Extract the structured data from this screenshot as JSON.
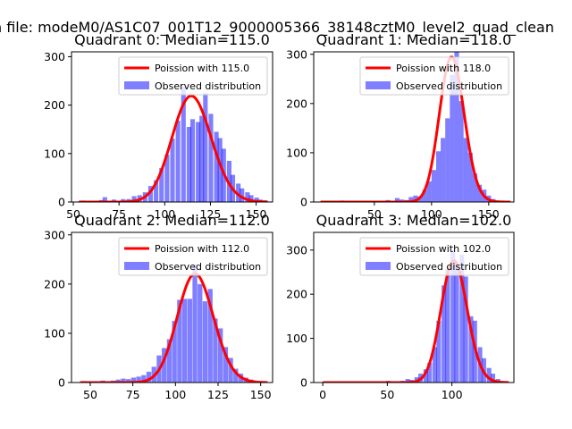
{
  "figure": {
    "suptitle": "n file: modeM0/AS1C07_001T12_9000005366_38148cztM0_level2_quad_clean"
  },
  "chart_data": [
    {
      "type": "bar",
      "title": "Quadrant 0: Median=115.0",
      "xlim": [
        49,
        159
      ],
      "ylim": [
        0,
        310
      ],
      "xticks": [
        50,
        75,
        100,
        125,
        150
      ],
      "yticks": [
        0,
        100,
        200,
        300
      ],
      "bin_width": 2.5,
      "histogram": {
        "name": "Observed distribution",
        "color": "#0000ff",
        "alpha": 0.5,
        "bins": [
          [
            54,
            3
          ],
          [
            64,
            4
          ],
          [
            66,
            10
          ],
          [
            71,
            5
          ],
          [
            76,
            6
          ],
          [
            79,
            6
          ],
          [
            82,
            12
          ],
          [
            85,
            14
          ],
          [
            88,
            20
          ],
          [
            91,
            33
          ],
          [
            94,
            45
          ],
          [
            97,
            70
          ],
          [
            100,
            98
          ],
          [
            103,
            131
          ],
          [
            106,
            168
          ],
          [
            109,
            238
          ],
          [
            112,
            155
          ],
          [
            114,
            171
          ],
          [
            117,
            165
          ],
          [
            119,
            178
          ],
          [
            121,
            225
          ],
          [
            124,
            182
          ],
          [
            127,
            145
          ],
          [
            129,
            132
          ],
          [
            131,
            110
          ],
          [
            134,
            85
          ],
          [
            136,
            56
          ],
          [
            139,
            38
          ],
          [
            141,
            28
          ],
          [
            144,
            20
          ],
          [
            146,
            14
          ],
          [
            149,
            9
          ],
          [
            151,
            5
          ],
          [
            154,
            3
          ]
        ]
      },
      "poisson": {
        "name": "Poission with 115.0",
        "mean": 115.0,
        "color": "#ff0000"
      },
      "legend": {
        "position": "top-right",
        "entries": [
          "Poission with 115.0",
          "Observed distribution"
        ]
      }
    },
    {
      "type": "bar",
      "title": "Quadrant 1: Median=118.0",
      "xlim": [
        -3,
        172
      ],
      "ylim": [
        0,
        305
      ],
      "xticks": [
        50,
        100,
        150
      ],
      "yticks": [
        0,
        100,
        200,
        300
      ],
      "bin_width": 4,
      "histogram": {
        "name": "Observed distribution",
        "color": "#0000ff",
        "alpha": 0.5,
        "bins": [
          [
            4,
            2
          ],
          [
            20,
            3
          ],
          [
            60,
            4
          ],
          [
            68,
            8
          ],
          [
            72,
            5
          ],
          [
            76,
            4
          ],
          [
            80,
            10
          ],
          [
            84,
            13
          ],
          [
            88,
            11
          ],
          [
            92,
            25
          ],
          [
            96,
            42
          ],
          [
            100,
            65
          ],
          [
            104,
            103
          ],
          [
            108,
            130
          ],
          [
            112,
            170
          ],
          [
            116,
            258
          ],
          [
            120,
            320
          ],
          [
            124,
            205
          ],
          [
            128,
            130
          ],
          [
            132,
            100
          ],
          [
            136,
            58
          ],
          [
            140,
            35
          ],
          [
            144,
            25
          ],
          [
            148,
            13
          ],
          [
            152,
            6
          ],
          [
            156,
            3
          ],
          [
            160,
            2
          ]
        ]
      },
      "poisson": {
        "name": "Poission with 118.0",
        "mean": 118.0,
        "color": "#ff0000"
      },
      "legend": {
        "position": "top-right",
        "entries": [
          "Poission with 118.0",
          "Observed distribution"
        ]
      }
    },
    {
      "type": "bar",
      "title": "Quadrant 2: Median=112.0",
      "xlim": [
        39,
        157
      ],
      "ylim": [
        0,
        305
      ],
      "xticks": [
        50,
        75,
        100,
        125,
        150
      ],
      "yticks": [
        0,
        100,
        200,
        300
      ],
      "bin_width": 2.8,
      "histogram": {
        "name": "Observed distribution",
        "color": "#0000ff",
        "alpha": 0.5,
        "bins": [
          [
            45,
            3
          ],
          [
            56,
            4
          ],
          [
            62,
            4
          ],
          [
            65,
            6
          ],
          [
            68,
            8
          ],
          [
            71,
            7
          ],
          [
            74,
            10
          ],
          [
            77,
            12
          ],
          [
            80,
            15
          ],
          [
            83,
            22
          ],
          [
            86,
            32
          ],
          [
            89,
            55
          ],
          [
            92,
            70
          ],
          [
            95,
            88
          ],
          [
            98,
            125
          ],
          [
            101,
            168
          ],
          [
            104,
            170
          ],
          [
            107,
            170
          ],
          [
            110,
            240
          ],
          [
            113,
            200
          ],
          [
            116,
            165
          ],
          [
            119,
            190
          ],
          [
            122,
            130
          ],
          [
            125,
            110
          ],
          [
            128,
            72
          ],
          [
            131,
            50
          ],
          [
            134,
            28
          ],
          [
            137,
            18
          ],
          [
            140,
            10
          ],
          [
            143,
            6
          ],
          [
            146,
            3
          ]
        ]
      },
      "poisson": {
        "name": "Poission with 112.0",
        "mean": 112.0,
        "color": "#ff0000"
      },
      "legend": {
        "position": "top-right",
        "entries": [
          "Poission with 112.0",
          "Observed distribution"
        ]
      }
    },
    {
      "type": "bar",
      "title": "Quadrant 3: Median=102.0",
      "xlim": [
        -7,
        148
      ],
      "ylim": [
        0,
        340
      ],
      "xticks": [
        0,
        50,
        100
      ],
      "yticks": [
        0,
        100,
        200,
        300
      ],
      "bin_width": 3.5,
      "histogram": {
        "name": "Observed distribution",
        "color": "#0000ff",
        "alpha": 0.5,
        "bins": [
          [
            1,
            2
          ],
          [
            49,
            4
          ],
          [
            57,
            3
          ],
          [
            60,
            4
          ],
          [
            64,
            8
          ],
          [
            67,
            6
          ],
          [
            71,
            12
          ],
          [
            74,
            20
          ],
          [
            78,
            30
          ],
          [
            81,
            45
          ],
          [
            85,
            80
          ],
          [
            88,
            140
          ],
          [
            92,
            220
          ],
          [
            95,
            258
          ],
          [
            99,
            300
          ],
          [
            102,
            270
          ],
          [
            106,
            290
          ],
          [
            109,
            240
          ],
          [
            113,
            150
          ],
          [
            116,
            140
          ],
          [
            120,
            80
          ],
          [
            123,
            55
          ],
          [
            127,
            33
          ],
          [
            130,
            20
          ],
          [
            134,
            8
          ]
        ]
      },
      "poisson": {
        "name": "Poission with 102.0",
        "mean": 102.0,
        "color": "#ff0000"
      },
      "legend": {
        "position": "top-right",
        "entries": [
          "Poission with 102.0",
          "Observed distribution"
        ]
      }
    }
  ]
}
